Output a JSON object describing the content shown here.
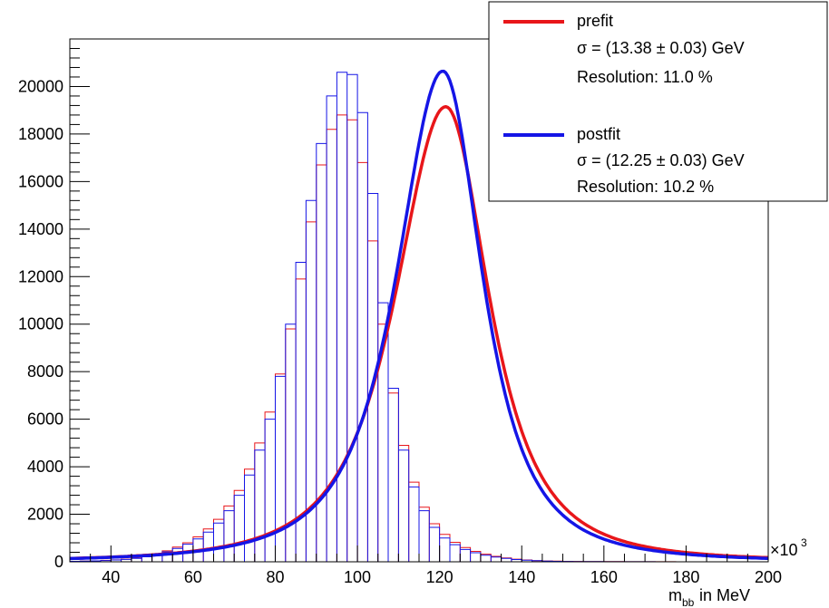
{
  "chart_data": {
    "type": "line",
    "xlabel_main": "m",
    "xlabel_sub": "bb",
    "xlabel_rest": " in MeV",
    "x_multiplier_prefix": "×10",
    "x_multiplier_exp": "3",
    "xlim": [
      30,
      200
    ],
    "ylim": [
      0,
      22000
    ],
    "x_ticks": [
      40,
      60,
      80,
      100,
      120,
      140,
      160,
      180,
      200
    ],
    "y_ticks": [
      0,
      2000,
      4000,
      6000,
      8000,
      10000,
      12000,
      14000,
      16000,
      18000,
      20000
    ],
    "grid": false,
    "legend_position": "top-right",
    "series": [
      {
        "name": "prefit",
        "legend_lines": [
          "prefit",
          "σ = (13.38 ± 0.03) GeV",
          "Resolution: 11.0 %"
        ],
        "color": "#e8161a",
        "histogram": {
          "bin_width": 2.5,
          "x_start": 30,
          "values": [
            20,
            30,
            40,
            60,
            80,
            110,
            160,
            240,
            340,
            460,
            620,
            800,
            1050,
            1380,
            1790,
            2350,
            3000,
            3900,
            5000,
            6300,
            7900,
            9800,
            11900,
            14300,
            16700,
            18200,
            18800,
            18600,
            16800,
            13500,
            10000,
            7100,
            4900,
            3350,
            2300,
            1600,
            1150,
            820,
            600,
            440,
            320,
            230,
            160,
            110,
            75,
            50,
            35,
            25,
            20,
            15,
            10,
            10,
            8,
            6,
            5,
            4,
            3,
            2,
            2,
            1,
            1,
            1,
            1,
            1,
            1,
            1,
            1,
            1
          ]
        },
        "fit": {
          "peak_x": 121.5,
          "peak_y": 19150,
          "sigma_left": 10.9,
          "sigma_right": 9.3,
          "tail_left": 1.55,
          "tail_right": 1.45
        }
      },
      {
        "name": "postfit",
        "legend_lines": [
          "postfit",
          "σ = (12.25 ± 0.03) GeV",
          "Resolution: 10.2 %"
        ],
        "color": "#1515e6",
        "histogram": {
          "bin_width": 2.5,
          "x_start": 30,
          "values": [
            20,
            30,
            40,
            55,
            75,
            100,
            140,
            210,
            300,
            420,
            560,
            740,
            960,
            1250,
            1630,
            2150,
            2800,
            3650,
            4700,
            6000,
            7800,
            10000,
            12600,
            15200,
            17600,
            19600,
            20600,
            20500,
            18900,
            15500,
            10900,
            7300,
            4700,
            3150,
            2150,
            1450,
            1000,
            720,
            520,
            380,
            280,
            200,
            140,
            95,
            65,
            45,
            30,
            20,
            15,
            10,
            8,
            6,
            5,
            4,
            3,
            2,
            2,
            1,
            1,
            1,
            1,
            1,
            1,
            1,
            1,
            1,
            1,
            1
          ]
        },
        "fit": {
          "peak_x": 120.8,
          "peak_y": 20650,
          "sigma_left": 10.0,
          "sigma_right": 8.5,
          "tail_left": 1.5,
          "tail_right": 1.45
        }
      }
    ]
  }
}
